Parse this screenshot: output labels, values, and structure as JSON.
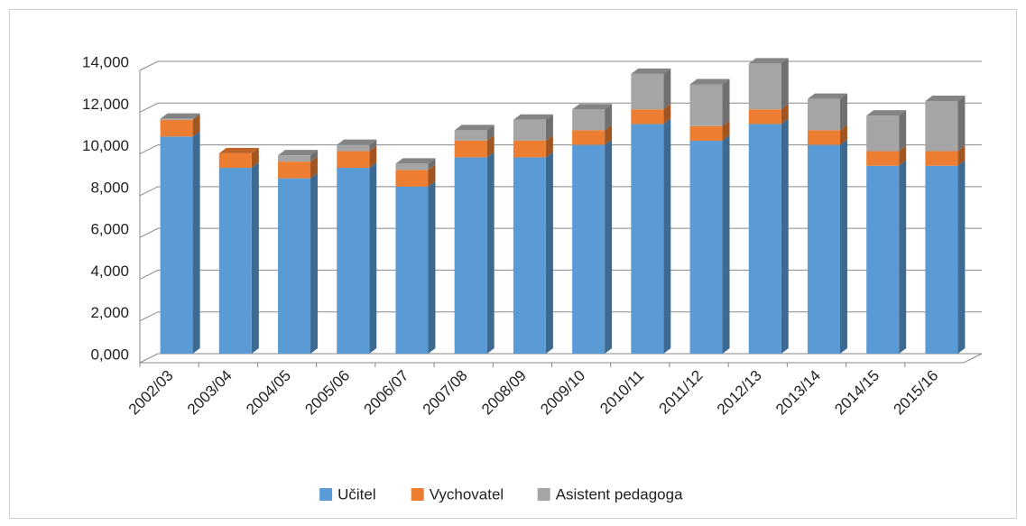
{
  "chart_data": {
    "type": "bar3d_stacked",
    "categories": [
      "2002/03",
      "2003/04",
      "2004/05",
      "2005/06",
      "2006/07",
      "2007/08",
      "2008/09",
      "2009/10",
      "2010/11",
      "2011/12",
      "2012/13",
      "2013/14",
      "2014/15",
      "2015/16"
    ],
    "series": [
      {
        "name": "Učitel",
        "color": "#5b9bd5",
        "values": [
          10400,
          8900,
          8400,
          8900,
          8000,
          9400,
          9400,
          10000,
          11000,
          10200,
          11000,
          10000,
          9000,
          9000
        ]
      },
      {
        "name": "Vychovatel",
        "color": "#ed7d31",
        "values": [
          800,
          700,
          800,
          800,
          800,
          800,
          800,
          700,
          700,
          700,
          700,
          700,
          700,
          700
        ]
      },
      {
        "name": "Asistent pedagoga",
        "color": "#a5a5a5",
        "values": [
          50,
          0,
          300,
          300,
          300,
          500,
          1000,
          1000,
          1700,
          2000,
          2200,
          1500,
          1700,
          2400
        ]
      }
    ],
    "ylim": [
      0,
      14000
    ],
    "yticks": [
      {
        "value": 0,
        "label": "0,000"
      },
      {
        "value": 2000,
        "label": "2,000"
      },
      {
        "value": 4000,
        "label": "4,000"
      },
      {
        "value": 6000,
        "label": "6,000"
      },
      {
        "value": 8000,
        "label": "8,000"
      },
      {
        "value": 10000,
        "label": "10,000"
      },
      {
        "value": 12000,
        "label": "12,000"
      },
      {
        "value": 14000,
        "label": "14,000"
      }
    ],
    "grid": true,
    "legend": "bottom"
  }
}
